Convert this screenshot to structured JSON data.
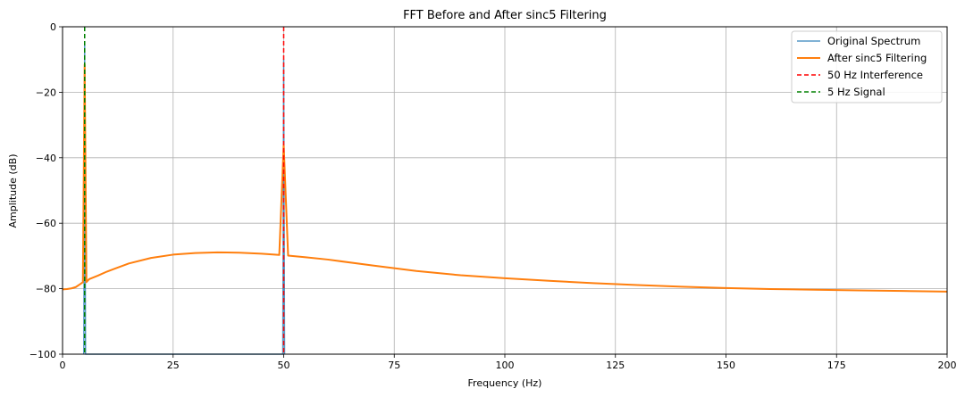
{
  "chart_data": {
    "type": "line",
    "title": "FFT Before and After sinc5 Filtering",
    "xlabel": "Frequency (Hz)",
    "ylabel": "Amplitude (dB)",
    "xlim": [
      0,
      200
    ],
    "ylim": [
      -100,
      0
    ],
    "xticks": [
      0,
      25,
      50,
      75,
      100,
      125,
      150,
      175,
      200
    ],
    "yticks": [
      0,
      -20,
      -40,
      -60,
      -80,
      -100
    ],
    "xtick_labels": [
      "0",
      "25",
      "50",
      "75",
      "100",
      "125",
      "150",
      "175",
      "200"
    ],
    "ytick_labels": [
      "0",
      "−20",
      "−40",
      "−60",
      "−80",
      "−100"
    ],
    "grid": true,
    "legend_position": "top-right",
    "series": [
      {
        "name": "Original Spectrum",
        "color": "#1f77b4",
        "style": "solid",
        "x": [
          4.8,
          4.9,
          5.0,
          5.1,
          5.2,
          49.8,
          49.9,
          50.0,
          50.1,
          50.2
        ],
        "y": [
          -100,
          -60,
          -5,
          -60,
          -100,
          -100,
          -60,
          -10,
          -60,
          -100
        ]
      },
      {
        "name": "After sinc5 Filtering",
        "color": "#ff7f0e",
        "style": "solid",
        "x": [
          0,
          1,
          2,
          3,
          4,
          4.6,
          5.0,
          5.4,
          6,
          8,
          10,
          15,
          20,
          25,
          30,
          35,
          40,
          45,
          49,
          50,
          51,
          55,
          60,
          70,
          80,
          90,
          100,
          110,
          120,
          130,
          140,
          150,
          160,
          170,
          180,
          190,
          200
        ],
        "y": [
          -80.2,
          -80.1,
          -79.9,
          -79.5,
          -78.6,
          -78.0,
          -11.5,
          -78.0,
          -77.1,
          -76.0,
          -74.8,
          -72.3,
          -70.6,
          -69.6,
          -69.1,
          -68.9,
          -69.0,
          -69.3,
          -69.7,
          -36.0,
          -69.9,
          -70.4,
          -71.1,
          -72.9,
          -74.6,
          -75.9,
          -76.8,
          -77.6,
          -78.3,
          -78.9,
          -79.4,
          -79.8,
          -80.1,
          -80.3,
          -80.5,
          -80.7,
          -80.9
        ]
      },
      {
        "name": "50 Hz Interference",
        "color": "#ff0000",
        "style": "dashed",
        "x": [
          50,
          50
        ],
        "y": [
          0,
          -100
        ]
      },
      {
        "name": "5 Hz Signal",
        "color": "#008000",
        "style": "dashed",
        "x": [
          5,
          5
        ],
        "y": [
          0,
          -100
        ]
      }
    ]
  }
}
